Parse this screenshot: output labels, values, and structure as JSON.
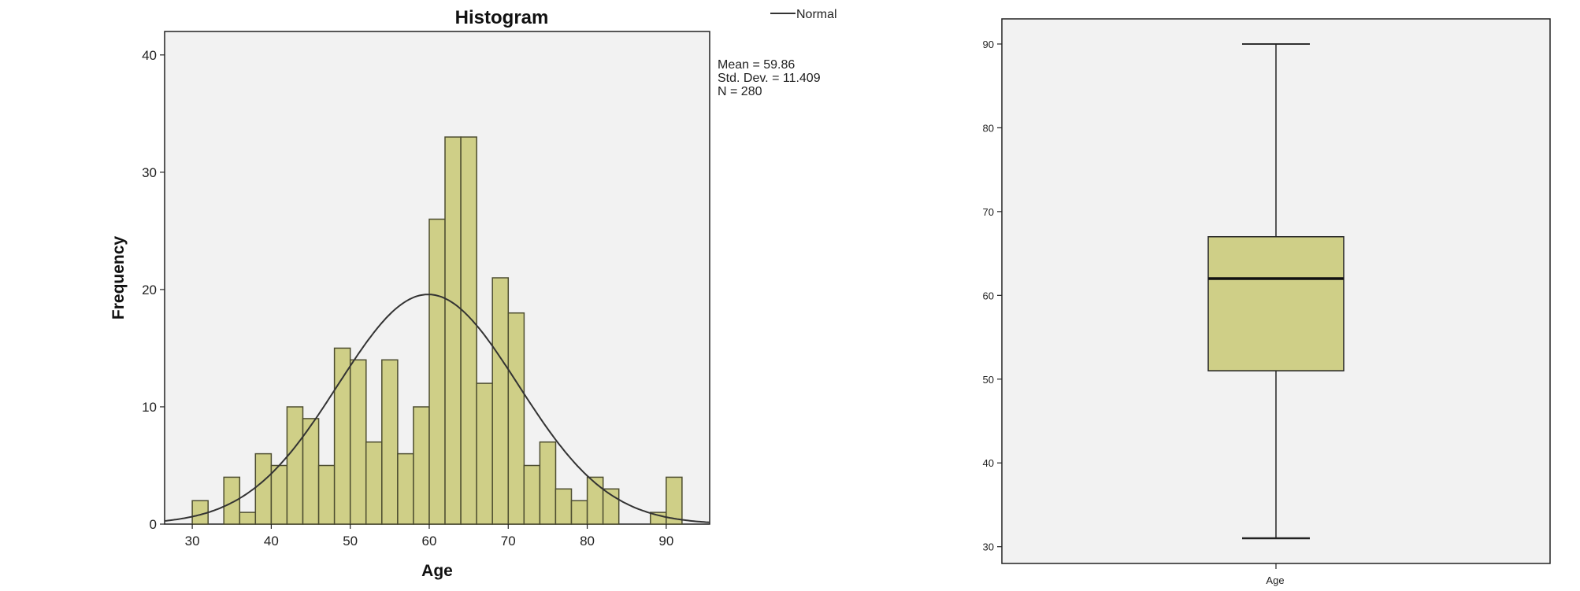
{
  "chart_data": [
    {
      "type": "bar",
      "subtype": "histogram",
      "title": "Histogram",
      "xlabel": "Age",
      "ylabel": "Frequency",
      "xlim": [
        26.5,
        95.5
      ],
      "ylim": [
        0,
        42
      ],
      "xticks": [
        30,
        40,
        50,
        60,
        70,
        80,
        90
      ],
      "yticks": [
        0,
        10,
        20,
        30,
        40
      ],
      "bin_width": 2,
      "bins": [
        {
          "x0": 30,
          "x1": 32,
          "count": 2
        },
        {
          "x0": 34,
          "x1": 36,
          "count": 4
        },
        {
          "x0": 36,
          "x1": 38,
          "count": 1
        },
        {
          "x0": 38,
          "x1": 40,
          "count": 6
        },
        {
          "x0": 40,
          "x1": 42,
          "count": 5
        },
        {
          "x0": 42,
          "x1": 44,
          "count": 10
        },
        {
          "x0": 44,
          "x1": 46,
          "count": 9
        },
        {
          "x0": 46,
          "x1": 48,
          "count": 5
        },
        {
          "x0": 48,
          "x1": 50,
          "count": 15
        },
        {
          "x0": 50,
          "x1": 52,
          "count": 14
        },
        {
          "x0": 52,
          "x1": 54,
          "count": 7
        },
        {
          "x0": 54,
          "x1": 56,
          "count": 14
        },
        {
          "x0": 56,
          "x1": 58,
          "count": 6
        },
        {
          "x0": 58,
          "x1": 60,
          "count": 10
        },
        {
          "x0": 60,
          "x1": 62,
          "count": 26
        },
        {
          "x0": 62,
          "x1": 64,
          "count": 33
        },
        {
          "x0": 64,
          "x1": 66,
          "count": 33
        },
        {
          "x0": 66,
          "x1": 68,
          "count": 12
        },
        {
          "x0": 68,
          "x1": 70,
          "count": 21
        },
        {
          "x0": 70,
          "x1": 72,
          "count": 18
        },
        {
          "x0": 72,
          "x1": 74,
          "count": 5
        },
        {
          "x0": 74,
          "x1": 76,
          "count": 7
        },
        {
          "x0": 76,
          "x1": 78,
          "count": 3
        },
        {
          "x0": 78,
          "x1": 80,
          "count": 2
        },
        {
          "x0": 80,
          "x1": 82,
          "count": 4
        },
        {
          "x0": 82,
          "x1": 84,
          "count": 3
        },
        {
          "x0": 88,
          "x1": 90,
          "count": 1
        },
        {
          "x0": 90,
          "x1": 92,
          "count": 4
        }
      ],
      "normal_curve": {
        "legend_label": "Normal",
        "mean": 59.86,
        "sd": 11.409,
        "n": 280
      },
      "stats_text": [
        "Mean = 59.86",
        "Std. Dev. = 11.409",
        "N = 280"
      ],
      "legend_position": "top-right",
      "grid": false,
      "colors": {
        "bar_fill": "#cfcf87",
        "bar_stroke": "#4d4d30",
        "plot_bg": "#f2f2f2",
        "curve": "#333333"
      }
    },
    {
      "type": "boxplot",
      "xlabel": "Age",
      "categories": [
        "Age"
      ],
      "ylim": [
        28,
        93
      ],
      "yticks": [
        30,
        40,
        50,
        60,
        70,
        80,
        90
      ],
      "stats": {
        "min": 31,
        "q1": 51,
        "median": 62,
        "q3": 67,
        "max": 90
      },
      "grid": false,
      "colors": {
        "box_fill": "#cfcf87",
        "stroke": "#222222",
        "plot_bg": "#f2f2f2"
      }
    }
  ]
}
